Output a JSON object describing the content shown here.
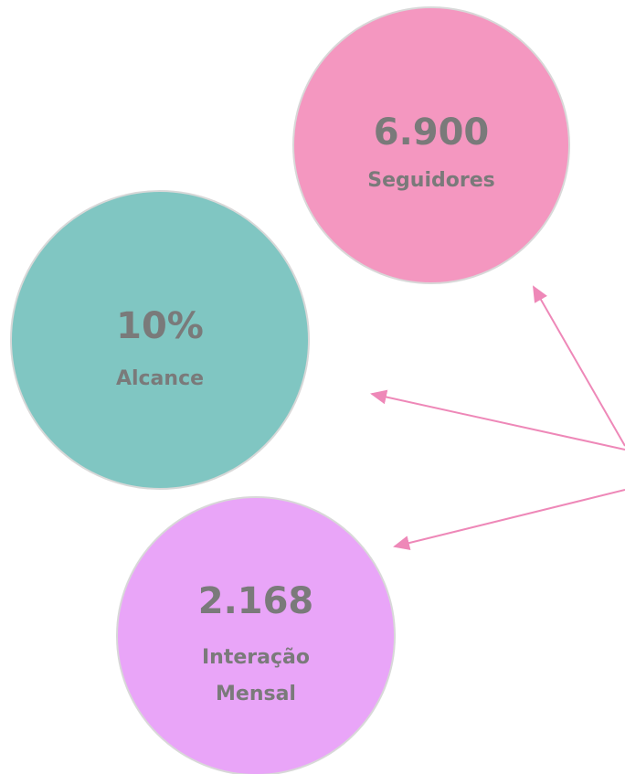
{
  "bubbles": [
    {
      "value": "6.900",
      "label": "Seguidores"
    },
    {
      "value": "10%",
      "label": "Alcance"
    },
    {
      "value": "2.168",
      "label": "Interação",
      "label2": "Mensal"
    }
  ]
}
